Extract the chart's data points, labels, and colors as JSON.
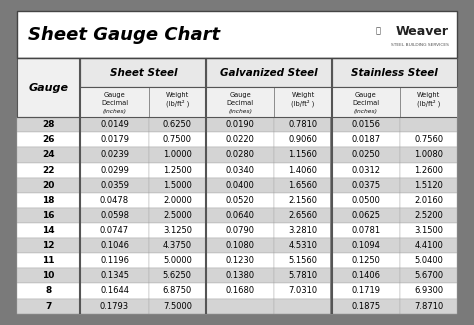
{
  "title": "Sheet Gauge Chart",
  "bg_outer": "#7a7a7a",
  "bg_inner": "#f2f2f2",
  "bg_title": "#ffffff",
  "bg_header_section": "#e8e8e8",
  "bg_header_sub": "#f0f0f0",
  "bg_row_odd": "#d4d4d4",
  "bg_row_even": "#ffffff",
  "gauges": [
    28,
    26,
    24,
    22,
    20,
    18,
    16,
    14,
    12,
    11,
    10,
    8,
    7
  ],
  "sheet_steel_decimal": [
    "0.0149",
    "0.0179",
    "0.0239",
    "0.0299",
    "0.0359",
    "0.0478",
    "0.0598",
    "0.0747",
    "0.1046",
    "0.1196",
    "0.1345",
    "0.1644",
    "0.1793"
  ],
  "sheet_steel_weight": [
    "0.6250",
    "0.7500",
    "1.0000",
    "1.2500",
    "1.5000",
    "2.0000",
    "2.5000",
    "3.1250",
    "4.3750",
    "5.0000",
    "5.6250",
    "6.8750",
    "7.5000"
  ],
  "galvanized_decimal": [
    "0.0190",
    "0.0220",
    "0.0280",
    "0.0340",
    "0.0400",
    "0.0520",
    "0.0640",
    "0.0790",
    "0.1080",
    "0.1230",
    "0.1380",
    "0.1680",
    ""
  ],
  "galvanized_weight": [
    "0.7810",
    "0.9060",
    "1.1560",
    "1.4060",
    "1.6560",
    "2.1560",
    "2.6560",
    "3.2810",
    "4.5310",
    "5.1560",
    "5.7810",
    "7.0310",
    ""
  ],
  "stainless_decimal": [
    "0.0156",
    "0.0187",
    "0.0250",
    "0.0312",
    "0.0375",
    "0.0500",
    "0.0625",
    "0.0781",
    "0.1094",
    "0.1250",
    "0.1406",
    "0.1719",
    "0.1875"
  ],
  "stainless_weight": [
    "",
    "0.7560",
    "1.0080",
    "1.2600",
    "1.5120",
    "2.0160",
    "2.5200",
    "3.1500",
    "4.4100",
    "5.0400",
    "5.6700",
    "6.9300",
    "7.8710"
  ]
}
